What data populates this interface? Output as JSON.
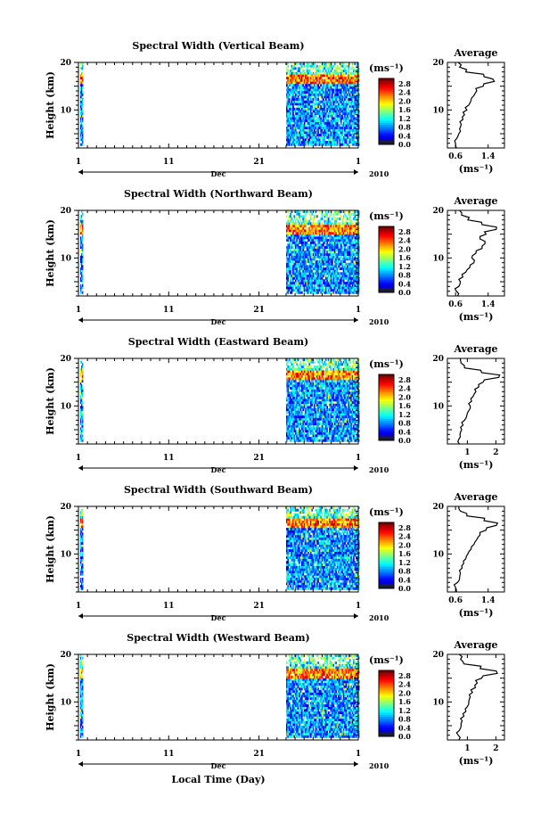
{
  "figure": {
    "xlabel_bottom": "Local Time (Day)",
    "background": "#ffffff"
  },
  "chart_data": [
    {
      "type": "heatmap",
      "title": "Spectral Width (Vertical Beam)",
      "ylabel": "Height (km)",
      "xlabel": "Dec",
      "year_label": "2010",
      "x_ticks": [
        "1",
        "11",
        "21",
        "1"
      ],
      "y_ticks": [
        "20",
        "10"
      ],
      "ylim": [
        2,
        20
      ],
      "colorbar": {
        "unit": "(ms⁻¹)",
        "ticks": [
          "2.8",
          "2.4",
          "2.0",
          "1.6",
          "1.2",
          "0.8",
          "0.4",
          "0.0"
        ]
      },
      "data_coverage_days": [
        [
          1.2,
          1.5
        ],
        [
          24.0,
          32.0
        ]
      ],
      "enhanced_band_km": [
        15.5,
        17.0
      ],
      "profile": {
        "title": "Average",
        "xlabel": "(ms⁻¹)",
        "x_ticks": [
          "0.6",
          "1.4"
        ],
        "xlim": [
          0.4,
          1.8
        ],
        "heights": [
          2,
          3,
          4,
          5,
          6,
          7,
          8,
          9,
          10,
          11,
          12,
          13,
          14,
          15,
          16,
          17,
          18,
          19,
          20
        ],
        "values": [
          0.62,
          0.6,
          0.63,
          0.68,
          0.7,
          0.74,
          0.78,
          0.82,
          0.88,
          0.92,
          0.98,
          1.05,
          1.12,
          1.28,
          1.55,
          1.3,
          0.85,
          0.7,
          0.66
        ]
      }
    },
    {
      "type": "heatmap",
      "title": "Spectral Width (Northward Beam)",
      "ylabel": "Height (km)",
      "xlabel": "Dec",
      "year_label": "2010",
      "x_ticks": [
        "1",
        "11",
        "21",
        "1"
      ],
      "y_ticks": [
        "20",
        "10"
      ],
      "ylim": [
        2,
        20
      ],
      "colorbar": {
        "unit": "(ms⁻¹)",
        "ticks": [
          "2.8",
          "2.4",
          "2.0",
          "1.6",
          "1.2",
          "0.8",
          "0.4",
          "0.0"
        ]
      },
      "data_coverage_days": [
        [
          1.2,
          1.5
        ],
        [
          24.0,
          32.0
        ]
      ],
      "enhanced_band_km": [
        15.0,
        16.5
      ],
      "profile": {
        "title": "Average",
        "xlabel": "(ms⁻¹)",
        "x_ticks": [
          "0.6",
          "1.4"
        ],
        "xlim": [
          0.4,
          1.8
        ],
        "heights": [
          2,
          3,
          4,
          5,
          6,
          7,
          8,
          9,
          10,
          11,
          12,
          13,
          14,
          15,
          16,
          17,
          18,
          19,
          20
        ],
        "values": [
          0.65,
          0.62,
          0.68,
          0.72,
          0.78,
          0.85,
          0.95,
          1.05,
          1.0,
          1.1,
          1.25,
          1.32,
          1.2,
          1.35,
          1.6,
          1.25,
          0.9,
          0.75,
          0.7
        ]
      }
    },
    {
      "type": "heatmap",
      "title": "Spectral Width (Eastward Beam)",
      "ylabel": "Height (km)",
      "xlabel": "Dec",
      "year_label": "2010",
      "x_ticks": [
        "1",
        "11",
        "21",
        "1"
      ],
      "y_ticks": [
        "20",
        "10"
      ],
      "ylim": [
        2,
        20
      ],
      "colorbar": {
        "unit": "(ms⁻¹)",
        "ticks": [
          "2.8",
          "2.4",
          "2.0",
          "1.6",
          "1.2",
          "0.8",
          "0.4",
          "0.0"
        ]
      },
      "data_coverage_days": [
        [
          1.2,
          1.5
        ],
        [
          24.0,
          32.0
        ]
      ],
      "enhanced_band_km": [
        15.5,
        17.0
      ],
      "profile": {
        "title": "Average",
        "xlabel": "(ms⁻¹)",
        "x_ticks": [
          "1",
          "2"
        ],
        "xlim": [
          0.3,
          2.3
        ],
        "heights": [
          2,
          3,
          4,
          5,
          6,
          7,
          8,
          9,
          10,
          11,
          12,
          13,
          14,
          15,
          16,
          17,
          18,
          19,
          20
        ],
        "values": [
          0.72,
          0.7,
          0.74,
          0.8,
          0.85,
          0.9,
          0.98,
          1.05,
          1.1,
          1.15,
          1.2,
          1.3,
          1.4,
          1.55,
          2.1,
          1.5,
          0.9,
          0.78,
          0.75
        ]
      }
    },
    {
      "type": "heatmap",
      "title": "Spectral Width (Southward Beam)",
      "ylabel": "Height (km)",
      "xlabel": "Dec",
      "year_label": "2010",
      "x_ticks": [
        "1",
        "11",
        "21",
        "1"
      ],
      "y_ticks": [
        "20",
        "10"
      ],
      "ylim": [
        2,
        20
      ],
      "colorbar": {
        "unit": "(ms⁻¹)",
        "ticks": [
          "2.8",
          "2.4",
          "2.0",
          "1.6",
          "1.2",
          "0.8",
          "0.4",
          "0.0"
        ]
      },
      "data_coverage_days": [
        [
          1.2,
          1.5
        ],
        [
          24.0,
          32.0
        ]
      ],
      "enhanced_band_km": [
        15.5,
        17.0
      ],
      "profile": {
        "title": "Average",
        "xlabel": "(ms⁻¹)",
        "x_ticks": [
          "0.6",
          "1.4"
        ],
        "xlim": [
          0.4,
          1.8
        ],
        "heights": [
          2,
          3,
          4,
          5,
          6,
          7,
          8,
          9,
          10,
          11,
          12,
          13,
          14,
          15,
          16,
          17,
          18,
          19,
          20
        ],
        "values": [
          0.62,
          0.6,
          0.65,
          0.7,
          0.72,
          0.76,
          0.8,
          0.85,
          0.9,
          0.98,
          1.05,
          1.12,
          1.2,
          1.35,
          1.6,
          1.3,
          0.88,
          0.72,
          0.68
        ]
      }
    },
    {
      "type": "heatmap",
      "title": "Spectral Width (Westward Beam)",
      "ylabel": "Height (km)",
      "xlabel": "Dec",
      "year_label": "2010",
      "x_ticks": [
        "1",
        "11",
        "21",
        "1"
      ],
      "y_ticks": [
        "20",
        "10"
      ],
      "ylim": [
        2,
        20
      ],
      "colorbar": {
        "unit": "(ms⁻¹)",
        "ticks": [
          "2.8",
          "2.4",
          "2.0",
          "1.6",
          "1.2",
          "0.8",
          "0.4",
          "0.0"
        ]
      },
      "data_coverage_days": [
        [
          1.2,
          1.5
        ],
        [
          24.0,
          32.0
        ]
      ],
      "enhanced_band_km": [
        15.0,
        16.5
      ],
      "profile": {
        "title": "Average",
        "xlabel": "(ms⁻¹)",
        "x_ticks": [
          "1",
          "2"
        ],
        "xlim": [
          0.3,
          2.3
        ],
        "heights": [
          2,
          3,
          4,
          5,
          6,
          7,
          8,
          9,
          10,
          11,
          12,
          13,
          14,
          15,
          16,
          17,
          18,
          19,
          20
        ],
        "values": [
          0.7,
          0.68,
          0.72,
          0.78,
          0.82,
          0.88,
          0.95,
          1.0,
          1.05,
          1.1,
          1.18,
          1.28,
          1.35,
          1.5,
          2.05,
          1.45,
          0.88,
          0.76,
          0.72
        ]
      }
    }
  ]
}
